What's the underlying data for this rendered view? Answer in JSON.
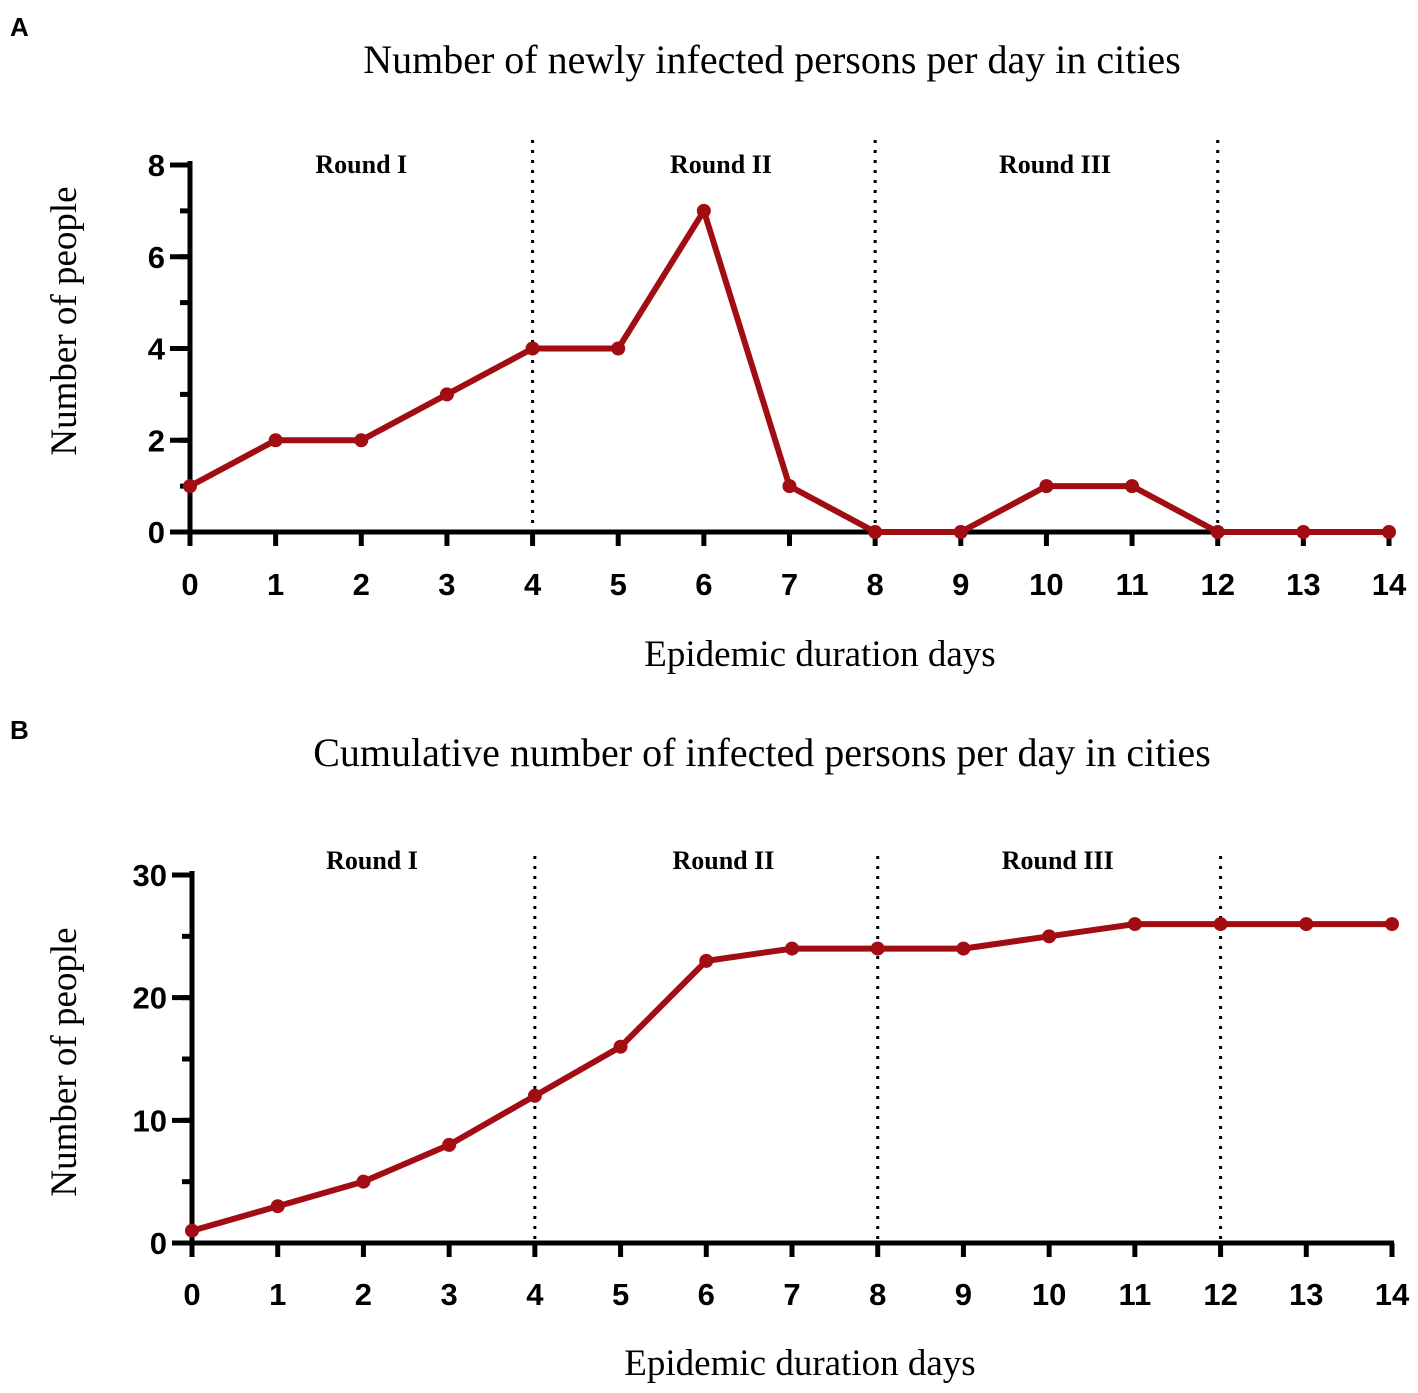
{
  "chart_data": [
    {
      "panel": "A",
      "type": "line",
      "title": "Number of newly infected persons per day in cities",
      "xlabel": "Epidemic duration days",
      "ylabel": "Number of people",
      "xlim": [
        0,
        14
      ],
      "ylim": [
        0,
        8
      ],
      "x_ticks": [
        0,
        1,
        2,
        3,
        4,
        5,
        6,
        7,
        8,
        9,
        10,
        11,
        12,
        13,
        14
      ],
      "y_ticks": [
        0,
        2,
        4,
        6,
        8
      ],
      "y_minor_step": 1,
      "dividers": [
        4,
        8,
        12
      ],
      "rounds": [
        {
          "label": "Round I",
          "x": 2
        },
        {
          "label": "Round II",
          "x": 6.2
        },
        {
          "label": "Round III",
          "x": 10.1
        }
      ],
      "series": [
        {
          "name": "newly infected",
          "color": "#a10d12",
          "x": [
            0,
            1,
            2,
            3,
            4,
            5,
            6,
            7,
            8,
            9,
            10,
            11,
            12,
            13,
            14
          ],
          "values": [
            1,
            2,
            2,
            3,
            4,
            4,
            7,
            1,
            0,
            0,
            1,
            1,
            0,
            0,
            0
          ]
        }
      ]
    },
    {
      "panel": "B",
      "type": "line",
      "title": "Cumulative number of infected persons per day in cities",
      "xlabel": "Epidemic duration days",
      "ylabel": "Number of people",
      "xlim": [
        0,
        14
      ],
      "ylim": [
        0,
        30
      ],
      "x_ticks": [
        0,
        1,
        2,
        3,
        4,
        5,
        6,
        7,
        8,
        9,
        10,
        11,
        12,
        13,
        14
      ],
      "y_ticks": [
        0,
        10,
        20,
        30
      ],
      "y_minor_step": 5,
      "dividers": [
        4,
        8,
        12
      ],
      "rounds": [
        {
          "label": "Round I",
          "x": 2.1
        },
        {
          "label": "Round II",
          "x": 6.2
        },
        {
          "label": "Round III",
          "x": 10.1
        }
      ],
      "series": [
        {
          "name": "cumulative infected",
          "color": "#a10d12",
          "x": [
            0,
            1,
            2,
            3,
            4,
            5,
            6,
            7,
            8,
            9,
            10,
            11,
            12,
            13,
            14
          ],
          "values": [
            1,
            3,
            5,
            8,
            12,
            16,
            23,
            24,
            24,
            24,
            25,
            26,
            26,
            26,
            26
          ]
        }
      ]
    }
  ]
}
